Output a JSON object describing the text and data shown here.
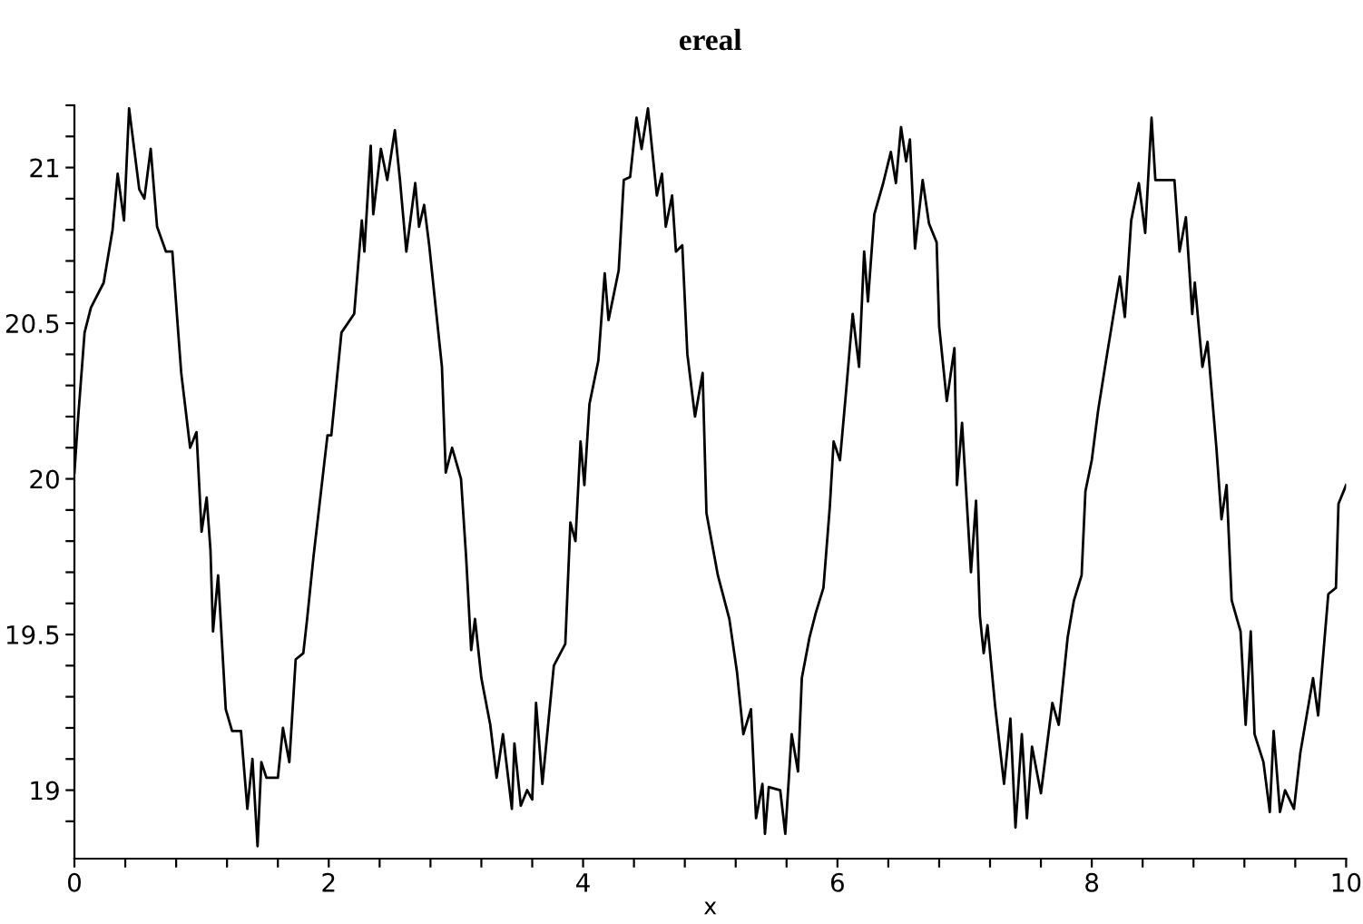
{
  "chart_data": {
    "type": "line",
    "title": "ereal",
    "xlabel": "x",
    "color": "#000000",
    "line_style": "solid",
    "marker": "none",
    "grid": false,
    "legend": false,
    "xlim": [
      0,
      10
    ],
    "ylim": [
      18.78,
      21.2
    ],
    "xticks": [
      0,
      {
        "value": 0.4,
        "label": null
      },
      {
        "value": 0.8,
        "label": null
      },
      {
        "value": 1.2,
        "label": null
      },
      {
        "value": 1.6,
        "label": null
      },
      2,
      {
        "value": 2.4,
        "label": null
      },
      {
        "value": 2.8,
        "label": null
      },
      {
        "value": 3.2,
        "label": null
      },
      {
        "value": 3.6,
        "label": null
      },
      4,
      {
        "value": 4.4,
        "label": null
      },
      {
        "value": 4.8,
        "label": null
      },
      {
        "value": 5.2,
        "label": null
      },
      {
        "value": 5.6,
        "label": null
      },
      6,
      {
        "value": 6.4,
        "label": null
      },
      {
        "value": 6.8,
        "label": null
      },
      {
        "value": 7.2,
        "label": null
      },
      {
        "value": 7.6,
        "label": null
      },
      8,
      {
        "value": 8.4,
        "label": null
      },
      {
        "value": 8.8,
        "label": null
      },
      {
        "value": 9.2,
        "label": null
      },
      {
        "value": 9.6,
        "label": null
      },
      10
    ],
    "yticks": [
      {
        "value": 18.9,
        "label": null
      },
      19,
      {
        "value": 19.1,
        "label": null
      },
      {
        "value": 19.2,
        "label": null
      },
      {
        "value": 19.3,
        "label": null
      },
      {
        "value": 19.4,
        "label": null
      },
      19.5,
      {
        "value": 19.6,
        "label": null
      },
      {
        "value": 19.7,
        "label": null
      },
      {
        "value": 19.8,
        "label": null
      },
      {
        "value": 19.9,
        "label": null
      },
      20,
      {
        "value": 20.1,
        "label": null
      },
      {
        "value": 20.2,
        "label": null
      },
      {
        "value": 20.3,
        "label": null
      },
      {
        "value": 20.4,
        "label": null
      },
      20.5,
      {
        "value": 20.6,
        "label": null
      },
      {
        "value": 20.7,
        "label": null
      },
      {
        "value": 20.8,
        "label": null
      },
      {
        "value": 20.9,
        "label": null
      },
      21,
      {
        "value": 21.1,
        "label": null
      },
      {
        "value": 21.2,
        "label": null
      }
    ],
    "x": [
      0,
      0.03,
      0.08,
      0.13,
      0.23,
      0.3,
      0.34,
      0.39,
      0.43,
      0.51,
      0.55,
      0.6,
      0.65,
      0.72,
      0.77,
      0.82,
      0.84,
      0.91,
      0.96,
      1.0,
      1.04,
      1.07,
      1.09,
      1.13,
      1.19,
      1.24,
      1.31,
      1.36,
      1.4,
      1.44,
      1.47,
      1.51,
      1.6,
      1.64,
      1.69,
      1.74,
      1.8,
      1.83,
      1.88,
      1.99,
      2.02,
      2.1,
      2.2,
      2.26,
      2.28,
      2.33,
      2.35,
      2.41,
      2.46,
      2.52,
      2.56,
      2.61,
      2.68,
      2.71,
      2.75,
      2.79,
      2.89,
      2.92,
      2.97,
      3.04,
      3.08,
      3.12,
      3.15,
      3.2,
      3.27,
      3.32,
      3.37,
      3.44,
      3.46,
      3.51,
      3.56,
      3.6,
      3.63,
      3.68,
      3.77,
      3.86,
      3.9,
      3.94,
      3.98,
      4.01,
      4.05,
      4.12,
      4.17,
      4.2,
      4.28,
      4.32,
      4.37,
      4.42,
      4.46,
      4.51,
      4.58,
      4.62,
      4.65,
      4.7,
      4.73,
      4.78,
      4.82,
      4.88,
      4.94,
      4.97,
      5.06,
      5.15,
      5.21,
      5.26,
      5.32,
      5.36,
      5.41,
      5.43,
      5.46,
      5.55,
      5.59,
      5.64,
      5.69,
      5.72,
      5.78,
      5.83,
      5.89,
      5.94,
      5.97,
      6.02,
      6.07,
      6.12,
      6.17,
      6.21,
      6.24,
      6.29,
      6.36,
      6.42,
      6.46,
      6.5,
      6.54,
      6.57,
      6.61,
      6.67,
      6.72,
      6.78,
      6.8,
      6.86,
      6.92,
      6.94,
      6.98,
      7.05,
      7.09,
      7.12,
      7.15,
      7.18,
      7.24,
      7.31,
      7.36,
      7.4,
      7.45,
      7.49,
      7.53,
      7.6,
      7.69,
      7.74,
      7.81,
      7.86,
      7.92,
      7.95,
      8.0,
      8.05,
      8.12,
      8.22,
      8.26,
      8.31,
      8.37,
      8.42,
      8.47,
      8.5,
      8.65,
      8.69,
      8.74,
      8.79,
      8.81,
      8.87,
      8.91,
      8.98,
      9.02,
      9.06,
      9.1,
      9.17,
      9.21,
      9.25,
      9.28,
      9.35,
      9.4,
      9.43,
      9.48,
      9.52,
      9.59,
      9.64,
      9.74,
      9.78,
      9.86,
      9.92,
      9.94,
      10.0
    ],
    "values": [
      20.02,
      20.2,
      20.47,
      20.55,
      20.63,
      20.8,
      20.98,
      20.83,
      21.19,
      20.93,
      20.9,
      21.06,
      20.81,
      20.73,
      20.73,
      20.45,
      20.34,
      20.1,
      20.15,
      19.83,
      19.94,
      19.77,
      19.51,
      19.69,
      19.26,
      19.19,
      19.19,
      18.94,
      19.1,
      18.82,
      19.09,
      19.04,
      19.04,
      19.2,
      19.09,
      19.42,
      19.44,
      19.55,
      19.75,
      20.14,
      20.14,
      20.47,
      20.53,
      20.83,
      20.73,
      21.07,
      20.85,
      21.06,
      20.96,
      21.12,
      20.96,
      20.73,
      20.95,
      20.81,
      20.88,
      20.75,
      20.36,
      20.02,
      20.1,
      20.0,
      19.75,
      19.45,
      19.55,
      19.36,
      19.21,
      19.04,
      19.18,
      18.94,
      19.15,
      18.95,
      19.0,
      18.97,
      19.28,
      19.02,
      19.4,
      19.47,
      19.86,
      19.8,
      20.12,
      19.98,
      20.24,
      20.38,
      20.66,
      20.51,
      20.67,
      20.96,
      20.97,
      21.16,
      21.06,
      21.19,
      20.91,
      20.98,
      20.81,
      20.91,
      20.73,
      20.75,
      20.4,
      20.2,
      20.34,
      19.89,
      19.69,
      19.55,
      19.38,
      19.18,
      19.26,
      18.91,
      19.02,
      18.86,
      19.01,
      19.0,
      18.86,
      19.18,
      19.06,
      19.36,
      19.49,
      19.57,
      19.65,
      19.91,
      20.12,
      20.06,
      20.29,
      20.53,
      20.36,
      20.73,
      20.57,
      20.85,
      20.95,
      21.05,
      20.95,
      21.13,
      21.02,
      21.09,
      20.74,
      20.96,
      20.82,
      20.76,
      20.49,
      20.25,
      20.42,
      19.98,
      20.18,
      19.7,
      19.93,
      19.56,
      19.44,
      19.53,
      19.27,
      19.02,
      19.23,
      18.88,
      19.18,
      18.91,
      19.14,
      18.99,
      19.28,
      19.21,
      19.49,
      19.61,
      19.69,
      19.96,
      20.06,
      20.22,
      20.4,
      20.65,
      20.52,
      20.83,
      20.95,
      20.79,
      21.16,
      20.96,
      20.96,
      20.73,
      20.84,
      20.53,
      20.63,
      20.36,
      20.44,
      20.1,
      19.87,
      19.98,
      19.61,
      19.51,
      19.21,
      19.51,
      19.18,
      19.09,
      18.93,
      19.19,
      18.93,
      19.0,
      18.94,
      19.12,
      19.36,
      19.24,
      19.63,
      19.65,
      19.92,
      19.98
    ]
  }
}
